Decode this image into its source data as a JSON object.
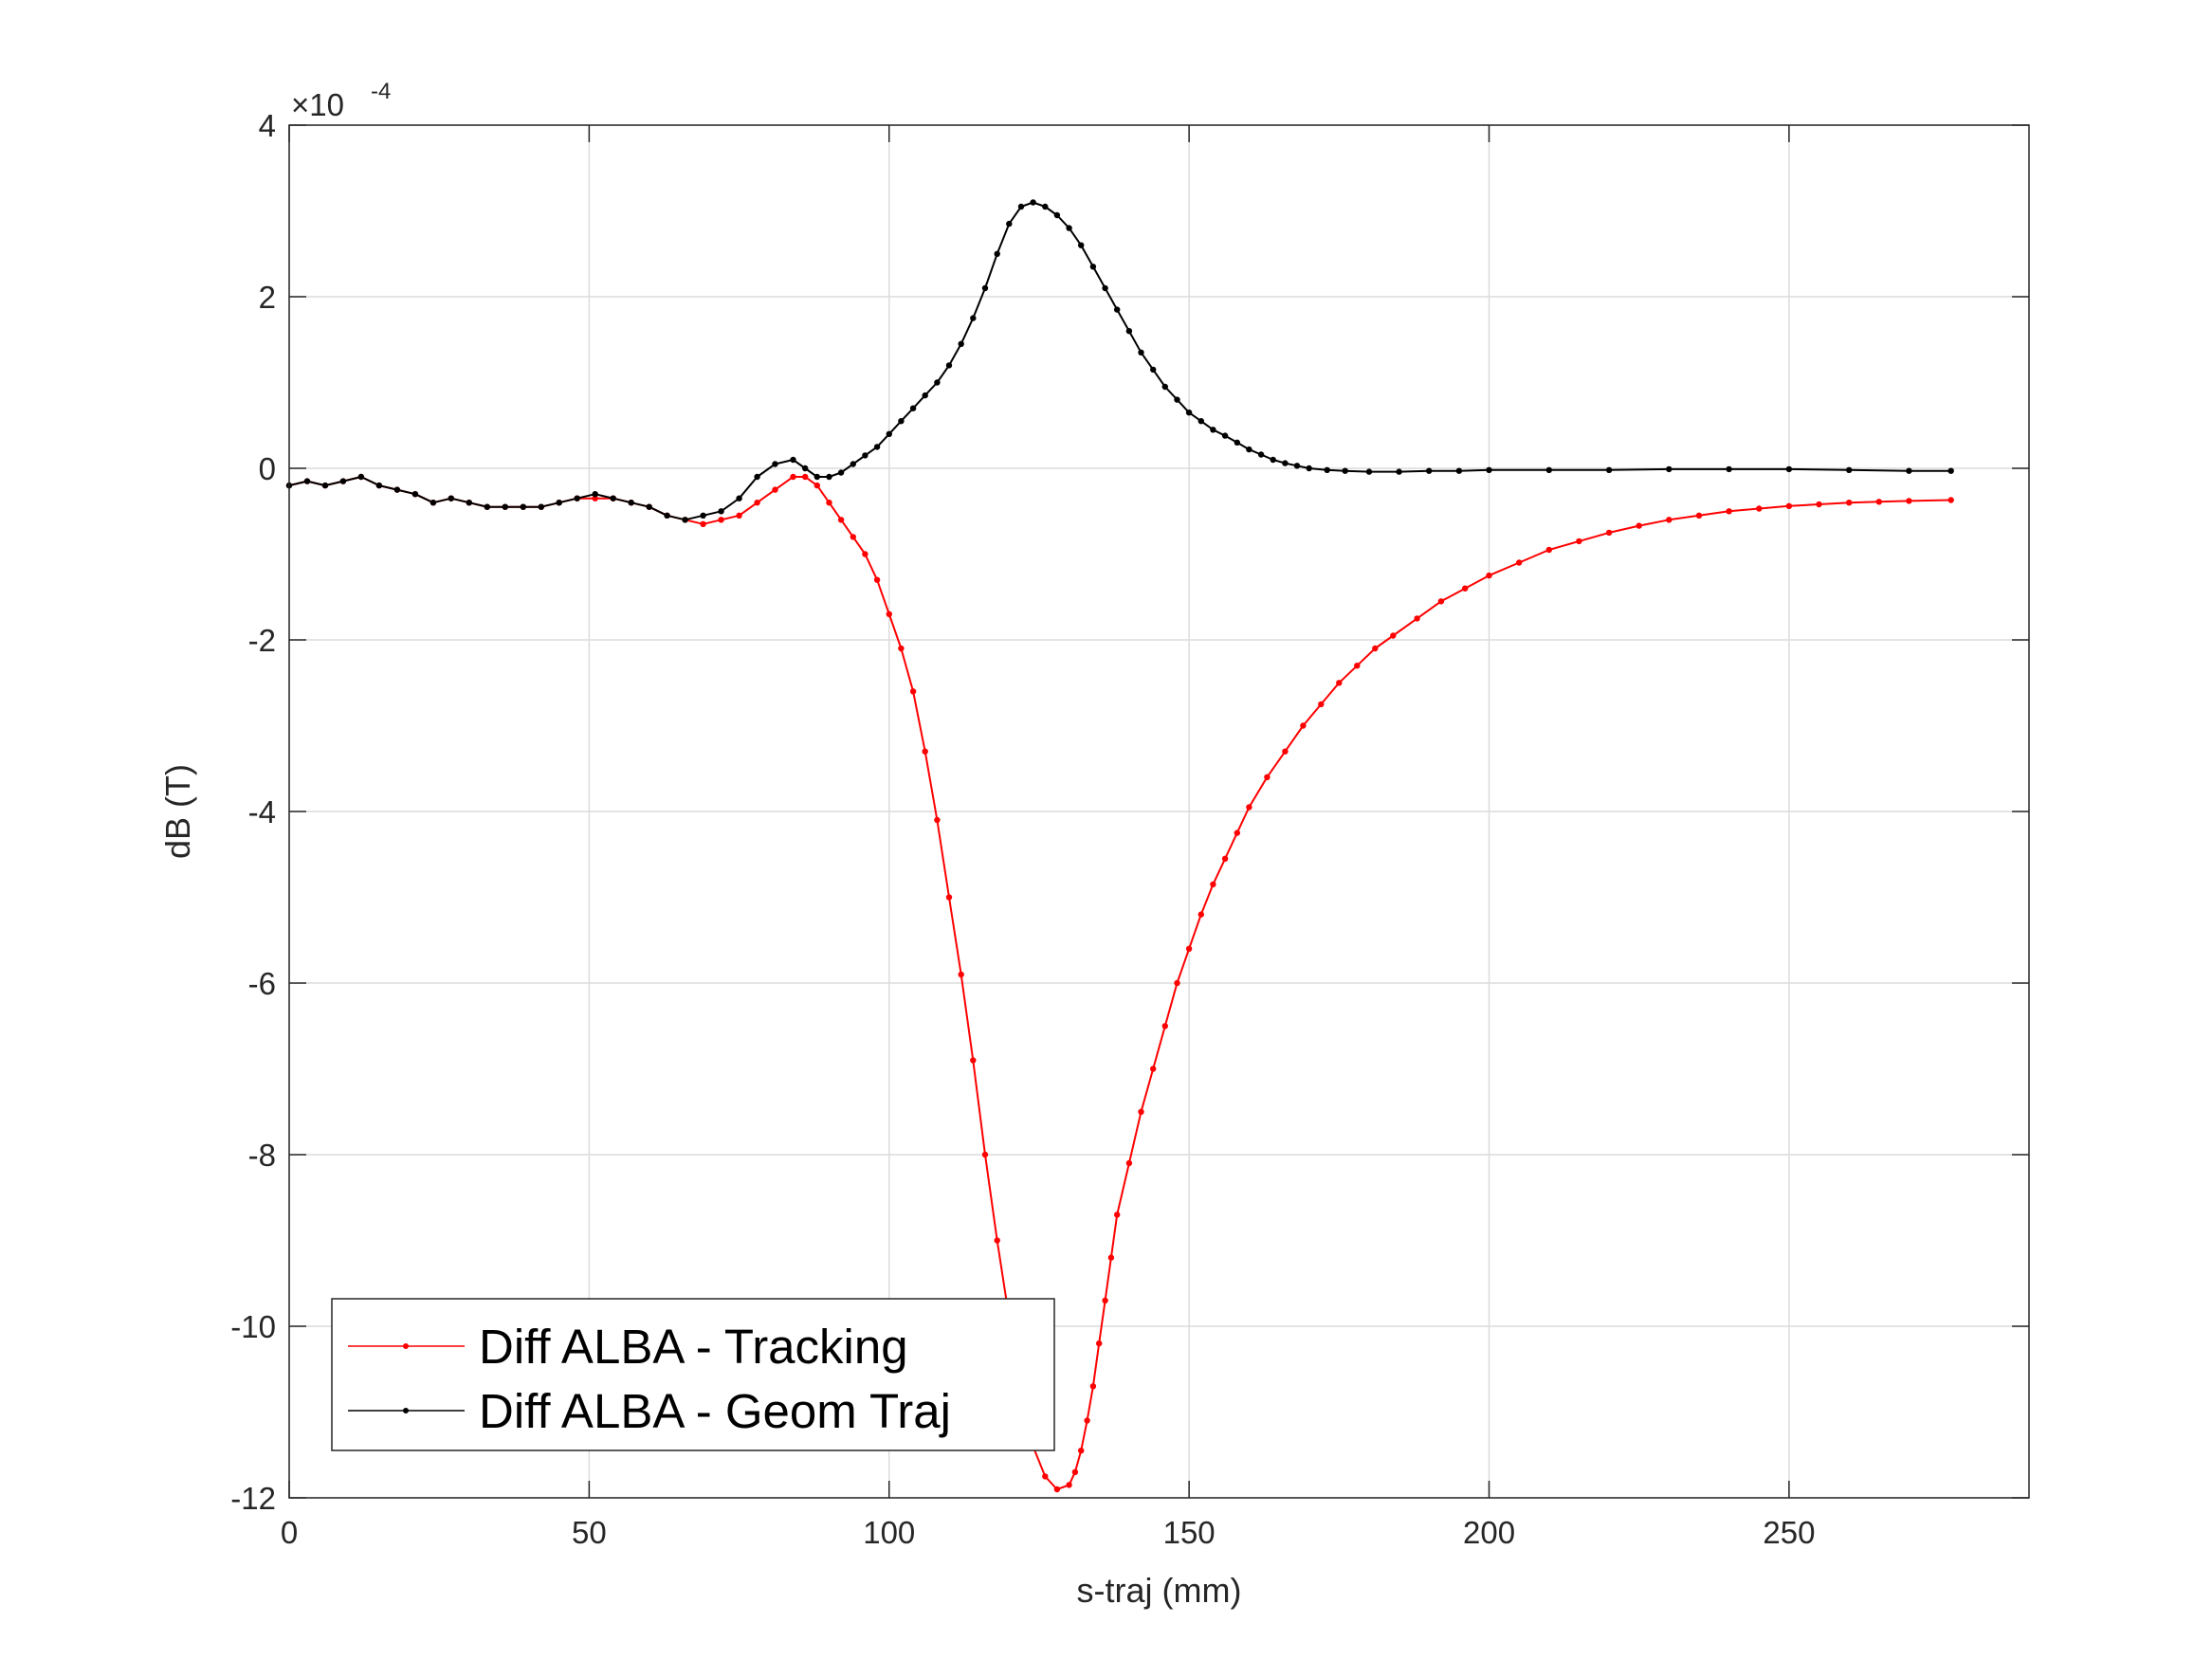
{
  "chart_data": {
    "type": "line",
    "xlabel": "s-traj (mm)",
    "ylabel": "dB (T)",
    "y_exponent_label": "×10",
    "y_exponent_power": "-4",
    "xlim": [
      0,
      290
    ],
    "ylim": [
      -12,
      4
    ],
    "xticks": [
      0,
      50,
      100,
      150,
      200,
      250
    ],
    "yticks": [
      -12,
      -10,
      -8,
      -6,
      -4,
      -2,
      0,
      2,
      4
    ],
    "grid": true,
    "legend_position": "bottom-left",
    "series": [
      {
        "name": "Diff ALBA - Tracking",
        "color": "#ff0000",
        "marker": "dot",
        "x": [
          0,
          3,
          6,
          9,
          12,
          15,
          18,
          21,
          24,
          27,
          30,
          33,
          36,
          39,
          42,
          45,
          48,
          51,
          54,
          57,
          60,
          63,
          66,
          69,
          72,
          75,
          78,
          81,
          84,
          86,
          88,
          90,
          92,
          94,
          96,
          98,
          100,
          102,
          104,
          106,
          108,
          110,
          112,
          114,
          116,
          118,
          120,
          122,
          124,
          126,
          128,
          130,
          131,
          132,
          133,
          134,
          135,
          136,
          137,
          138,
          140,
          142,
          144,
          146,
          148,
          150,
          152,
          154,
          156,
          158,
          160,
          163,
          166,
          169,
          172,
          175,
          178,
          181,
          184,
          188,
          192,
          196,
          200,
          205,
          210,
          215,
          220,
          225,
          230,
          235,
          240,
          245,
          250,
          255,
          260,
          265,
          270,
          277
        ],
        "values": [
          -0.2,
          -0.15,
          -0.2,
          -0.15,
          -0.1,
          -0.2,
          -0.25,
          -0.3,
          -0.4,
          -0.35,
          -0.4,
          -0.45,
          -0.45,
          -0.45,
          -0.45,
          -0.4,
          -0.35,
          -0.35,
          -0.35,
          -0.4,
          -0.45,
          -0.55,
          -0.6,
          -0.65,
          -0.6,
          -0.55,
          -0.4,
          -0.25,
          -0.1,
          -0.1,
          -0.2,
          -0.4,
          -0.6,
          -0.8,
          -1.0,
          -1.3,
          -1.7,
          -2.1,
          -2.6,
          -3.3,
          -4.1,
          -5.0,
          -5.9,
          -6.9,
          -8.0,
          -9.0,
          -9.9,
          -10.8,
          -11.4,
          -11.75,
          -11.9,
          -11.85,
          -11.7,
          -11.45,
          -11.1,
          -10.7,
          -10.2,
          -9.7,
          -9.2,
          -8.7,
          -8.1,
          -7.5,
          -7.0,
          -6.5,
          -6.0,
          -5.6,
          -5.2,
          -4.85,
          -4.55,
          -4.25,
          -3.95,
          -3.6,
          -3.3,
          -3.0,
          -2.75,
          -2.5,
          -2.3,
          -2.1,
          -1.95,
          -1.75,
          -1.55,
          -1.4,
          -1.25,
          -1.1,
          -0.95,
          -0.85,
          -0.75,
          -0.67,
          -0.6,
          -0.55,
          -0.5,
          -0.47,
          -0.44,
          -0.42,
          -0.4,
          -0.39,
          -0.38,
          -0.37
        ]
      },
      {
        "name": "Diff ALBA - Geom Traj",
        "color": "#000000",
        "marker": "dot",
        "x": [
          0,
          3,
          6,
          9,
          12,
          15,
          18,
          21,
          24,
          27,
          30,
          33,
          36,
          39,
          42,
          45,
          48,
          51,
          54,
          57,
          60,
          63,
          66,
          69,
          72,
          75,
          78,
          81,
          84,
          86,
          88,
          90,
          92,
          94,
          96,
          98,
          100,
          102,
          104,
          106,
          108,
          110,
          112,
          114,
          116,
          118,
          120,
          122,
          124,
          126,
          128,
          130,
          132,
          134,
          136,
          138,
          140,
          142,
          144,
          146,
          148,
          150,
          152,
          154,
          156,
          158,
          160,
          162,
          164,
          166,
          168,
          170,
          173,
          176,
          180,
          185,
          190,
          195,
          200,
          210,
          220,
          230,
          240,
          250,
          260,
          270,
          277
        ],
        "values": [
          -0.2,
          -0.15,
          -0.2,
          -0.15,
          -0.1,
          -0.2,
          -0.25,
          -0.3,
          -0.4,
          -0.35,
          -0.4,
          -0.45,
          -0.45,
          -0.45,
          -0.45,
          -0.4,
          -0.35,
          -0.3,
          -0.35,
          -0.4,
          -0.45,
          -0.55,
          -0.6,
          -0.55,
          -0.5,
          -0.35,
          -0.1,
          0.05,
          0.1,
          0.0,
          -0.1,
          -0.1,
          -0.05,
          0.05,
          0.15,
          0.25,
          0.4,
          0.55,
          0.7,
          0.85,
          1.0,
          1.2,
          1.45,
          1.75,
          2.1,
          2.5,
          2.85,
          3.05,
          3.1,
          3.05,
          2.95,
          2.8,
          2.6,
          2.35,
          2.1,
          1.85,
          1.6,
          1.35,
          1.15,
          0.95,
          0.8,
          0.65,
          0.55,
          0.45,
          0.38,
          0.3,
          0.22,
          0.16,
          0.1,
          0.06,
          0.03,
          0.0,
          -0.02,
          -0.03,
          -0.04,
          -0.04,
          -0.03,
          -0.03,
          -0.02,
          -0.02,
          -0.02,
          -0.01,
          -0.01,
          -0.01,
          -0.02,
          -0.03,
          -0.03
        ]
      }
    ]
  }
}
